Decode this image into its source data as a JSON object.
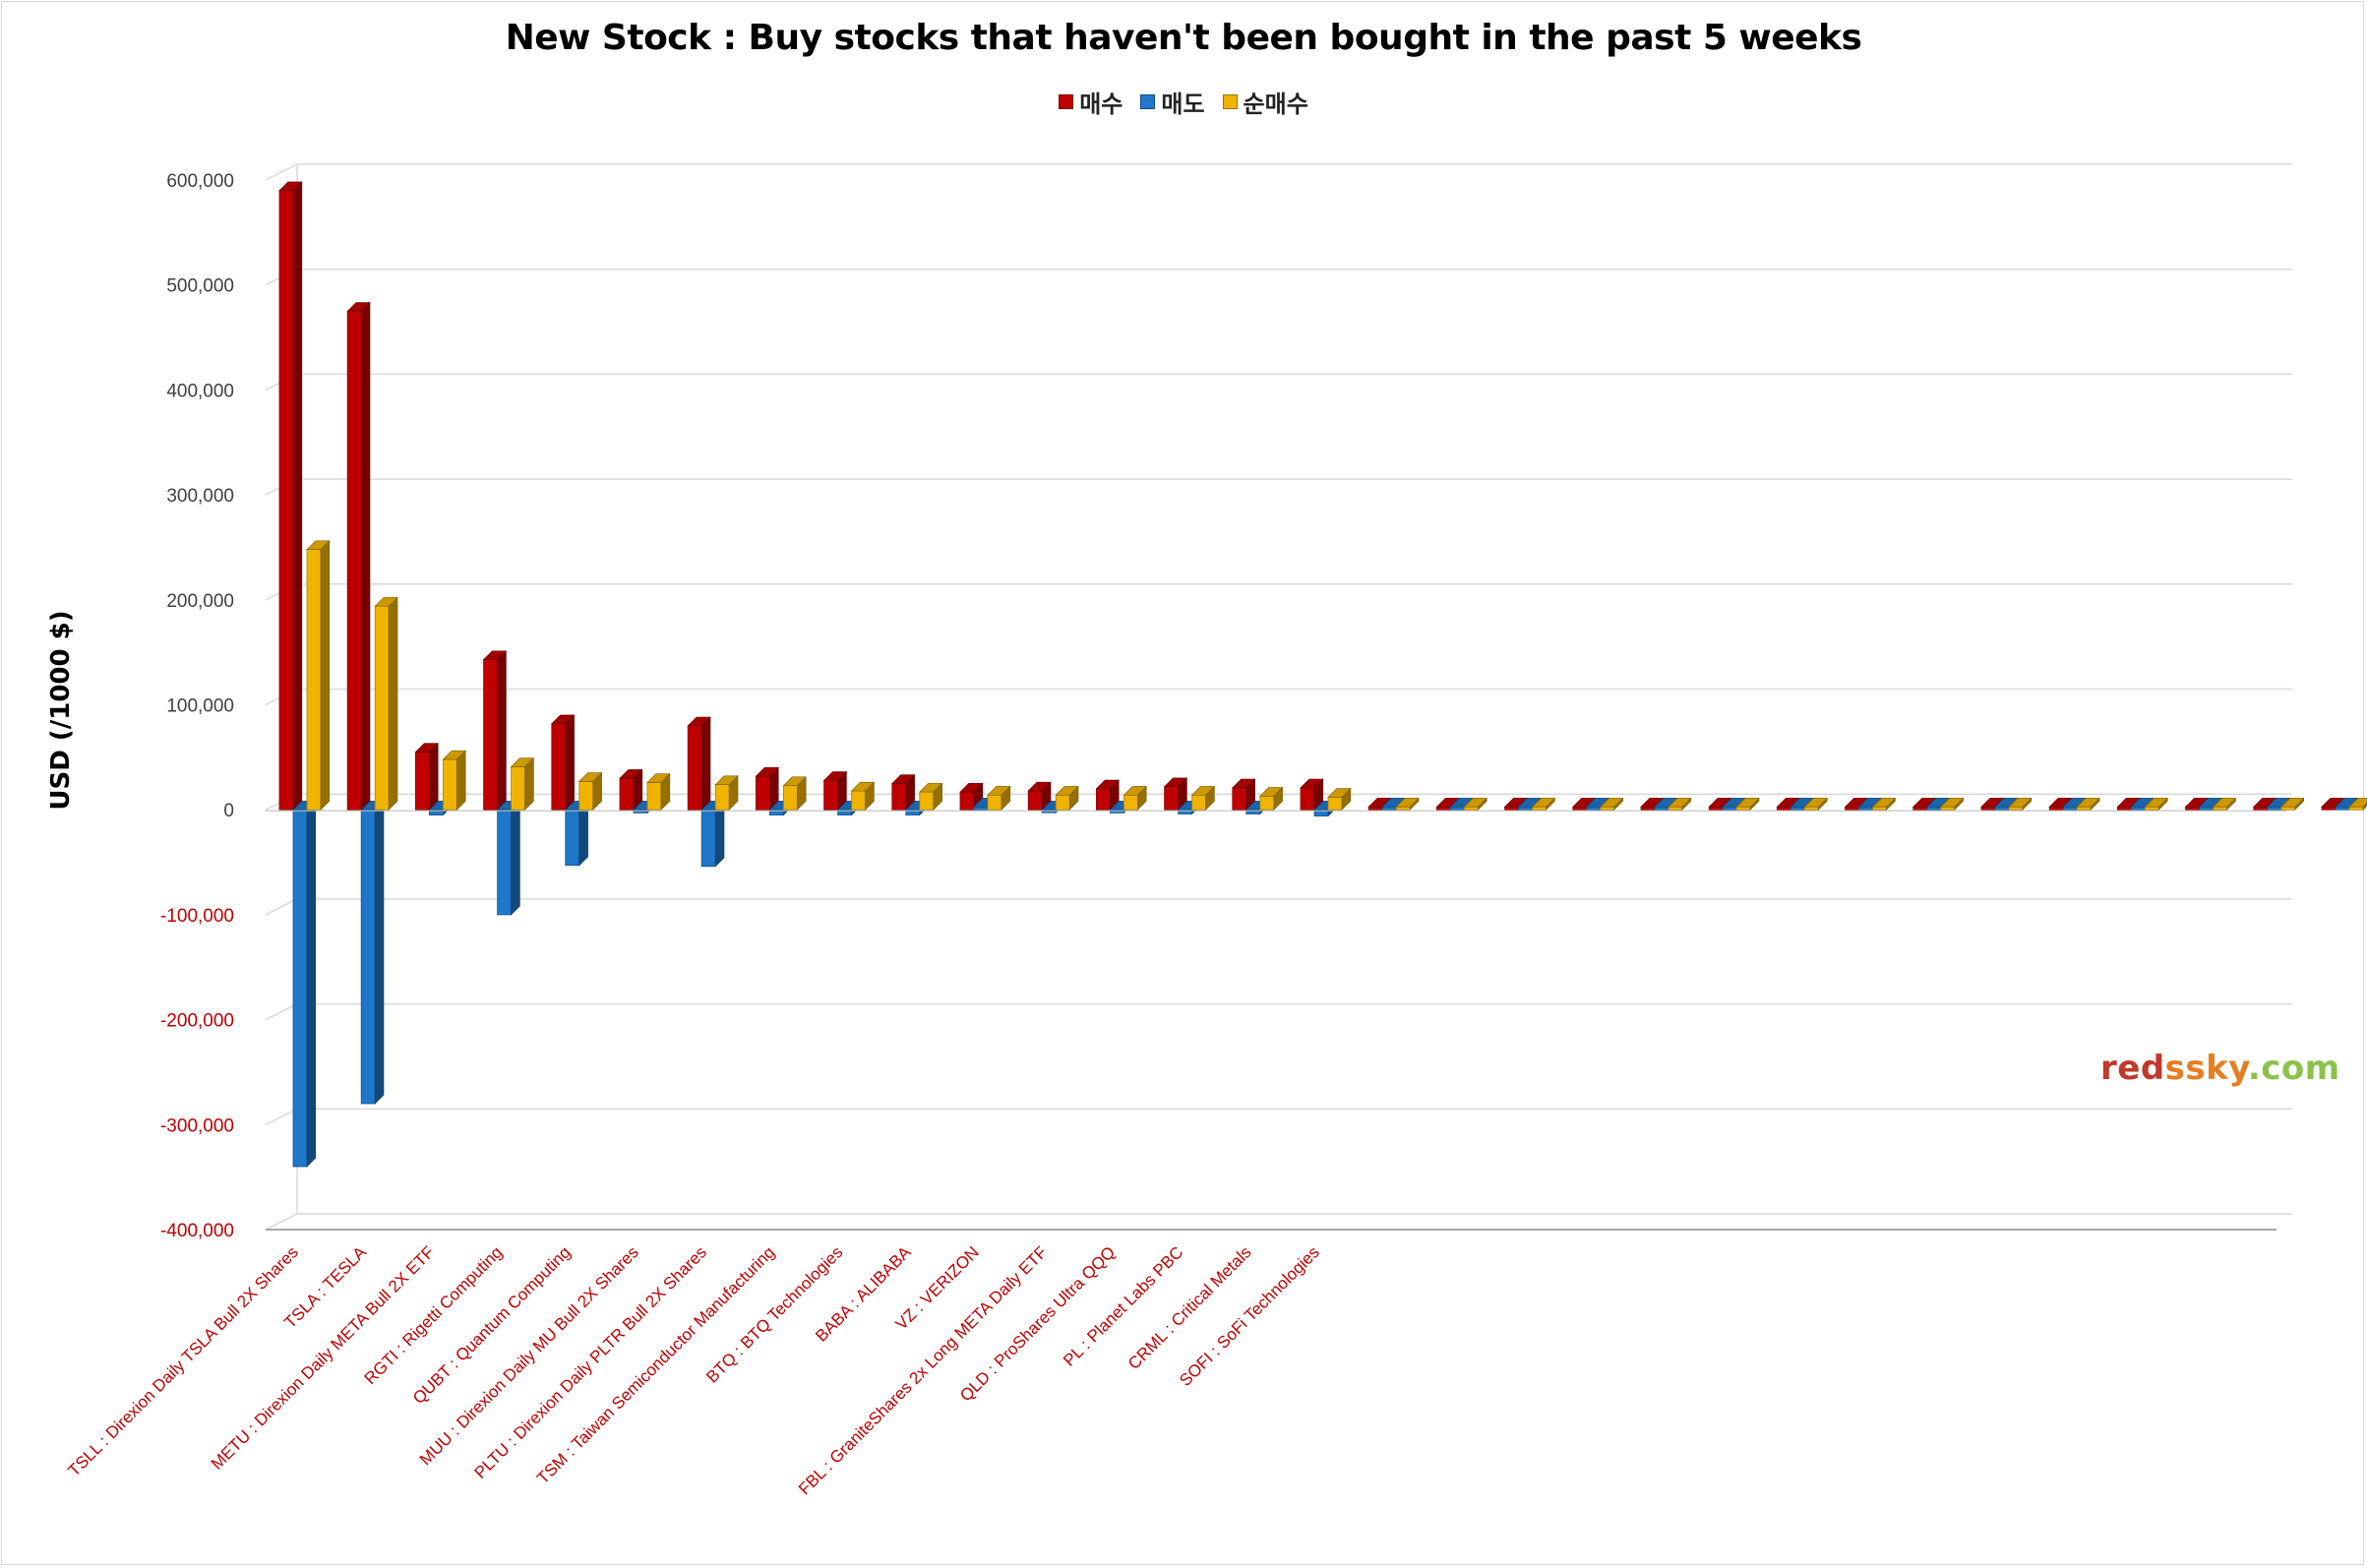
{
  "chart_data": {
    "type": "bar",
    "title": "New Stock : Buy stocks that haven't been bought in the past 5 weeks",
    "ylabel": "USD (/1000 $)",
    "xlabel": "",
    "ylim": [
      -400000,
      600000
    ],
    "y_ticks": [
      "600,000",
      "500,000",
      "400,000",
      "300,000",
      "200,000",
      "100,000",
      "0",
      "-100,000",
      "-200,000",
      "-300,000",
      "-400,000"
    ],
    "y_tick_values": [
      600000,
      500000,
      400000,
      300000,
      200000,
      100000,
      0,
      -100000,
      -200000,
      -300000,
      -400000
    ],
    "grid": true,
    "legend_position": "top-center",
    "categories": [
      "TSLL : Direxion Daily TSLA Bull 2X Shares",
      "TSLA : TESLA",
      "METU : Direxion Daily META Bull 2X ETF",
      "RGTI : Rigetti Computing",
      "QUBT : Quantum Computing",
      "MUU : Direxion Daily MU Bull 2X Shares",
      "PLTU : Direxion Daily PLTR Bull 2X Shares",
      "TSM : Taiwan Semiconductor Manufacturing",
      "BTQ : BTQ Technologies",
      "BABA : ALIBABA",
      "VZ : VERIZON",
      "FBL : GraniteShares 2x Long META Daily ETF",
      "QLD : ProShares Ultra QQQ",
      "PL : Planet Labs PBC",
      "CRML : Critical Metals",
      "SOFI : SoFi Technologies",
      "",
      "",
      "",
      "",
      "",
      "",
      "",
      "",
      "",
      "",
      "",
      "",
      "",
      "",
      ""
    ],
    "series": [
      {
        "name": "매수",
        "color": "#c00000",
        "values": [
          590000,
          475000,
          55000,
          143000,
          82000,
          30000,
          80000,
          32000,
          28000,
          25000,
          17000,
          18000,
          20000,
          22000,
          21000,
          21000,
          0,
          0,
          0,
          0,
          0,
          0,
          0,
          0,
          0,
          0,
          0,
          0,
          0,
          0,
          0
        ]
      },
      {
        "name": "매도",
        "color": "#1f77c9",
        "values": [
          -340000,
          -280000,
          -5000,
          -100000,
          -53000,
          -3000,
          -54000,
          -5000,
          -5000,
          -5000,
          0,
          -2000,
          -3000,
          -4000,
          -4000,
          -6000,
          0,
          0,
          0,
          0,
          0,
          0,
          0,
          0,
          0,
          0,
          0,
          0,
          0,
          0,
          0
        ]
      },
      {
        "name": "순매수",
        "color": "#f0b400",
        "values": [
          248000,
          194000,
          48000,
          41000,
          27000,
          26000,
          24000,
          23000,
          18000,
          17000,
          14000,
          14000,
          14000,
          14000,
          13000,
          12000,
          0,
          0,
          0,
          0,
          0,
          0,
          0,
          0,
          0,
          0,
          0,
          0,
          0,
          0,
          0
        ]
      }
    ]
  },
  "watermark": {
    "parts": [
      {
        "text": "red",
        "color": "#c0392b"
      },
      {
        "text": "ssky",
        "color": "#e67e22"
      },
      {
        "text": ".com",
        "color": "#8bc34a"
      }
    ]
  }
}
